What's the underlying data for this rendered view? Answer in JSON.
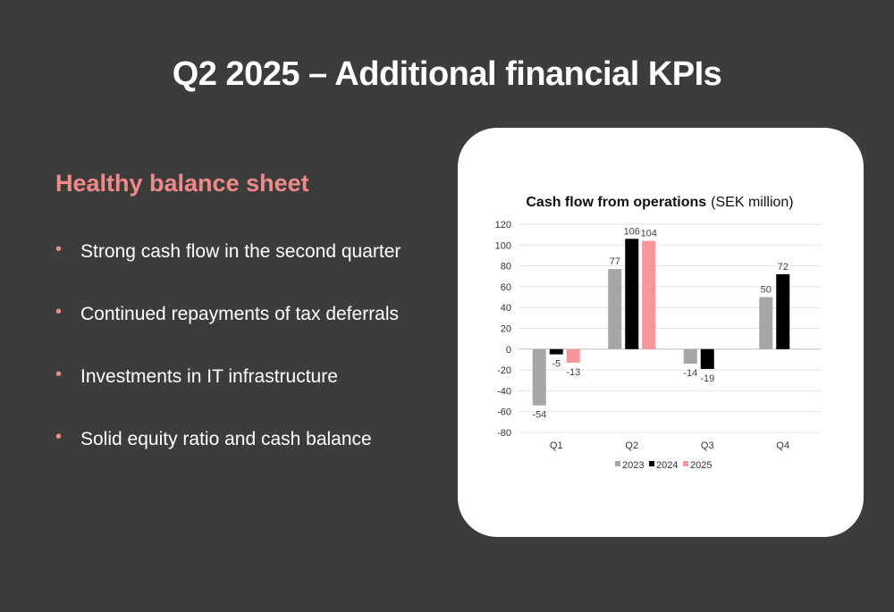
{
  "page": {
    "title": "Q2 2025 – Additional financial KPIs",
    "subtitle": "Healthy balance sheet",
    "bullets": [
      "Strong cash flow in the second quarter",
      "Continued repayments of tax deferrals",
      "Investments in IT infrastructure",
      "Solid equity ratio and cash balance"
    ],
    "bullet_color": "#f08a8a",
    "background_color": "#3c3c3b"
  },
  "chart_data": {
    "type": "bar",
    "title": "Cash flow from operations",
    "title_unit": "(SEK million)",
    "categories": [
      "Q1",
      "Q2",
      "Q3",
      "Q4"
    ],
    "series": [
      {
        "name": "2023",
        "color": "#a6a6a6",
        "values": [
          -54,
          77,
          -14,
          50
        ]
      },
      {
        "name": "2024",
        "color": "#000000",
        "values": [
          -5,
          106,
          -19,
          72
        ]
      },
      {
        "name": "2025",
        "color": "#f4969a",
        "values": [
          -13,
          104,
          null,
          null
        ]
      }
    ],
    "ylim": [
      -80,
      120
    ],
    "yticks": [
      120,
      100,
      80,
      60,
      40,
      20,
      0,
      -20,
      -40,
      -60,
      -80
    ],
    "grid": true,
    "legend_position": "bottom"
  }
}
